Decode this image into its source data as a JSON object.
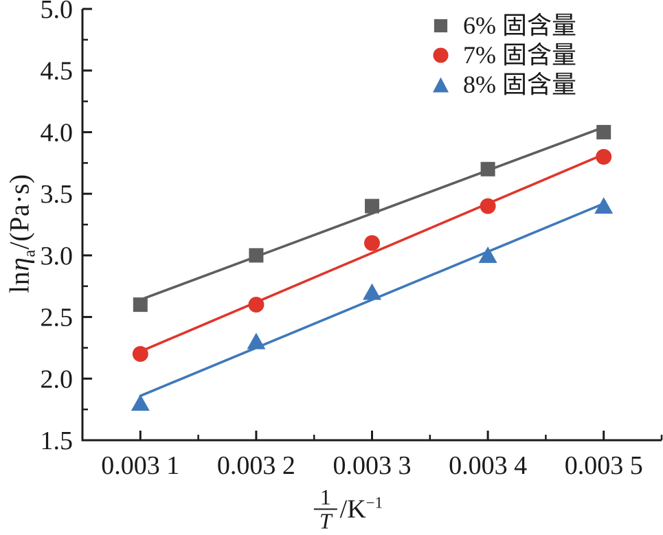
{
  "figure": {
    "background": "#ffffff",
    "axis_color": "#1c1c1c",
    "text_color": "#1a1a1a"
  },
  "chart_data": {
    "type": "scatter",
    "title": "",
    "grid": false,
    "legend_position": "top-right-inside",
    "x": [
      0.0031,
      0.0032,
      0.0033,
      0.0034,
      0.0035
    ],
    "x_tick_labels": [
      "0.003 1",
      "0.003 2",
      "0.003 3",
      "0.003 4",
      "0.003 5"
    ],
    "xlim": [
      0.00305,
      0.00355
    ],
    "y_ticks": [
      1.5,
      2.0,
      2.5,
      3.0,
      3.5,
      4.0,
      4.5,
      5.0
    ],
    "y_tick_labels": [
      "1.5",
      "2.0",
      "2.5",
      "3.0",
      "3.5",
      "4.0",
      "4.5",
      "5.0"
    ],
    "y_minor_ticks": [
      1.75,
      2.25,
      2.75,
      3.25,
      3.75,
      4.25,
      4.75
    ],
    "ylim": [
      1.5,
      5.0
    ],
    "xlabel_text": "1/T /K−1",
    "ylabel_text": "lnηa/(Pa·s)",
    "xlabel_parts": {
      "numerator": "1",
      "denominator": "T",
      "unit": "/K",
      "unit_exponent": "−1"
    },
    "ylabel_parts": {
      "prefix": "ln",
      "symbol": "η",
      "subscript": "a",
      "suffix": "/(Pa·s)"
    },
    "series": [
      {
        "name": "6% 固含量",
        "marker": "square",
        "color": "#5e5e5e",
        "values": [
          2.6,
          3.0,
          3.4,
          3.7,
          4.0
        ],
        "fit_line": true
      },
      {
        "name": "7% 固含量",
        "marker": "circle",
        "color": "#e0352b",
        "values": [
          2.2,
          2.6,
          3.1,
          3.4,
          3.8
        ],
        "fit_line": true
      },
      {
        "name": "8% 固含量",
        "marker": "triangle",
        "color": "#3f78ba",
        "values": [
          1.8,
          2.3,
          2.7,
          3.0,
          3.4
        ],
        "fit_line": true
      }
    ]
  }
}
